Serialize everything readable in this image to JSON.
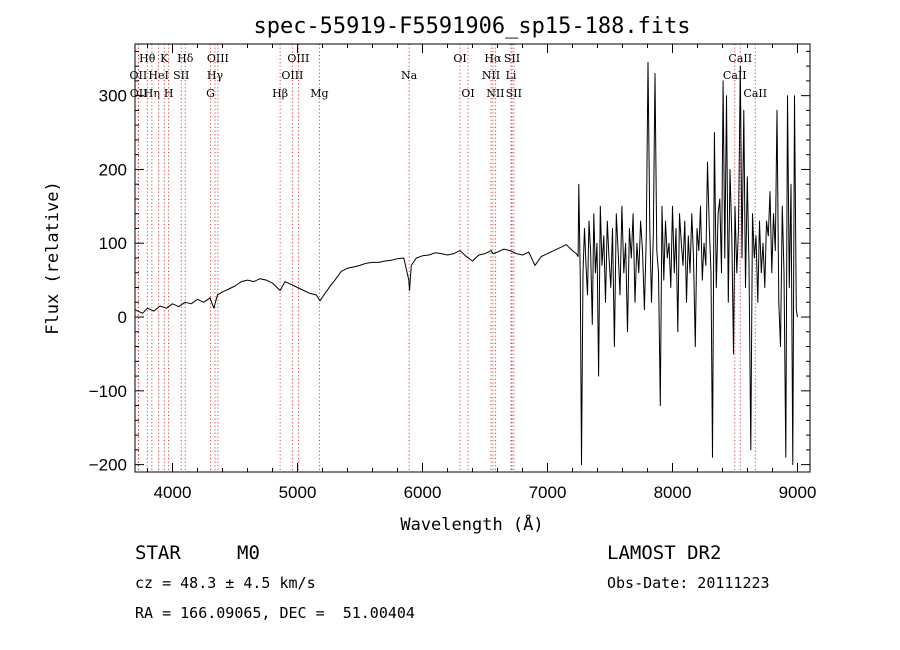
{
  "chart_data": {
    "type": "line",
    "title": "spec-55919-F5591906_sp15-188.fits",
    "xlabel": "Wavelength (Å)",
    "ylabel": "Flux (relative)",
    "xlim": [
      3700,
      9100
    ],
    "ylim": [
      -210,
      370
    ],
    "xticks": [
      "4000",
      "5000",
      "6000",
      "7000",
      "8000",
      "9000"
    ],
    "yticks": [
      "−200",
      "−100",
      "0",
      "100",
      "200",
      "300"
    ],
    "grid": false,
    "series": [
      {
        "points": [
          [
            3700,
            10
          ],
          [
            3760,
            5
          ],
          [
            3800,
            12
          ],
          [
            3850,
            8
          ],
          [
            3900,
            15
          ],
          [
            3950,
            12
          ],
          [
            4000,
            18
          ],
          [
            4050,
            14
          ],
          [
            4100,
            20
          ],
          [
            4150,
            18
          ],
          [
            4200,
            24
          ],
          [
            4250,
            20
          ],
          [
            4300,
            26
          ],
          [
            4330,
            12
          ],
          [
            4360,
            30
          ],
          [
            4400,
            34
          ],
          [
            4450,
            38
          ],
          [
            4500,
            42
          ],
          [
            4550,
            48
          ],
          [
            4600,
            50
          ],
          [
            4650,
            48
          ],
          [
            4700,
            52
          ],
          [
            4750,
            50
          ],
          [
            4800,
            46
          ],
          [
            4861,
            36
          ],
          [
            4900,
            48
          ],
          [
            4950,
            44
          ],
          [
            5000,
            40
          ],
          [
            5050,
            36
          ],
          [
            5100,
            32
          ],
          [
            5150,
            30
          ],
          [
            5180,
            22
          ],
          [
            5220,
            32
          ],
          [
            5270,
            44
          ],
          [
            5300,
            50
          ],
          [
            5350,
            62
          ],
          [
            5400,
            66
          ],
          [
            5450,
            68
          ],
          [
            5500,
            70
          ],
          [
            5550,
            73
          ],
          [
            5600,
            74
          ],
          [
            5650,
            74
          ],
          [
            5700,
            76
          ],
          [
            5750,
            77
          ],
          [
            5800,
            79
          ],
          [
            5850,
            80
          ],
          [
            5890,
            50
          ],
          [
            5896,
            36
          ],
          [
            5910,
            70
          ],
          [
            5950,
            80
          ],
          [
            6000,
            83
          ],
          [
            6050,
            84
          ],
          [
            6100,
            87
          ],
          [
            6150,
            86
          ],
          [
            6200,
            84
          ],
          [
            6250,
            86
          ],
          [
            6300,
            90
          ],
          [
            6350,
            82
          ],
          [
            6400,
            76
          ],
          [
            6450,
            84
          ],
          [
            6500,
            86
          ],
          [
            6550,
            90
          ],
          [
            6563,
            86
          ],
          [
            6600,
            88
          ],
          [
            6650,
            92
          ],
          [
            6700,
            90
          ],
          [
            6750,
            86
          ],
          [
            6800,
            84
          ],
          [
            6850,
            88
          ],
          [
            6900,
            70
          ],
          [
            6950,
            82
          ],
          [
            7000,
            86
          ],
          [
            7050,
            90
          ],
          [
            7100,
            94
          ],
          [
            7150,
            98
          ],
          [
            7200,
            90
          ],
          [
            7230,
            86
          ],
          [
            7245,
            82
          ],
          [
            7250,
            180
          ],
          [
            7262,
            50
          ],
          [
            7272,
            -200
          ],
          [
            7284,
            60
          ],
          [
            7296,
            120
          ],
          [
            7308,
            70
          ],
          [
            7320,
            30
          ],
          [
            7332,
            130
          ],
          [
            7345,
            90
          ],
          [
            7358,
            -10
          ],
          [
            7370,
            140
          ],
          [
            7383,
            60
          ],
          [
            7396,
            100
          ],
          [
            7409,
            -80
          ],
          [
            7422,
            150
          ],
          [
            7436,
            70
          ],
          [
            7450,
            110
          ],
          [
            7464,
            20
          ],
          [
            7478,
            130
          ],
          [
            7492,
            80
          ],
          [
            7506,
            40
          ],
          [
            7520,
            120
          ],
          [
            7535,
            -40
          ],
          [
            7550,
            140
          ],
          [
            7565,
            90
          ],
          [
            7580,
            30
          ],
          [
            7595,
            150
          ],
          [
            7610,
            60
          ],
          [
            7625,
            100
          ],
          [
            7640,
            -20
          ],
          [
            7655,
            120
          ],
          [
            7670,
            80
          ],
          [
            7685,
            140
          ],
          [
            7700,
            20
          ],
          [
            7715,
            100
          ],
          [
            7730,
            60
          ],
          [
            7745,
            130
          ],
          [
            7760,
            90
          ],
          [
            7775,
            10
          ],
          [
            7790,
            110
          ],
          [
            7804,
            345
          ],
          [
            7818,
            120
          ],
          [
            7832,
            20
          ],
          [
            7846,
            110
          ],
          [
            7860,
            330
          ],
          [
            7874,
            90
          ],
          [
            7888,
            60
          ],
          [
            7902,
            -120
          ],
          [
            7916,
            150
          ],
          [
            7930,
            50
          ],
          [
            7944,
            130
          ],
          [
            7958,
            80
          ],
          [
            7972,
            100
          ],
          [
            7986,
            40
          ],
          [
            8000,
            150
          ],
          [
            8014,
            60
          ],
          [
            8028,
            120
          ],
          [
            8042,
            -20
          ],
          [
            8056,
            140
          ],
          [
            8070,
            100
          ],
          [
            8084,
            70
          ],
          [
            8098,
            130
          ],
          [
            8112,
            20
          ],
          [
            8126,
            110
          ],
          [
            8140,
            60
          ],
          [
            8154,
            140
          ],
          [
            8168,
            80
          ],
          [
            8182,
            -40
          ],
          [
            8196,
            120
          ],
          [
            8210,
            90
          ],
          [
            8224,
            150
          ],
          [
            8238,
            50
          ],
          [
            8252,
            100
          ],
          [
            8266,
            70
          ],
          [
            8280,
            210
          ],
          [
            8294,
            120
          ],
          [
            8308,
            60
          ],
          [
            8320,
            -190
          ],
          [
            8335,
            250
          ],
          [
            8350,
            40
          ],
          [
            8365,
            140
          ],
          [
            8378,
            160
          ],
          [
            8392,
            60
          ],
          [
            8405,
            320
          ],
          [
            8418,
            80
          ],
          [
            8432,
            300
          ],
          [
            8446,
            20
          ],
          [
            8460,
            200
          ],
          [
            8474,
            110
          ],
          [
            8488,
            -50
          ],
          [
            8500,
            150
          ],
          [
            8514,
            60
          ],
          [
            8528,
            120
          ],
          [
            8542,
            340
          ],
          [
            8556,
            80
          ],
          [
            8570,
            280
          ],
          [
            8584,
            40
          ],
          [
            8598,
            190
          ],
          [
            8612,
            70
          ],
          [
            8626,
            -180
          ],
          [
            8640,
            140
          ],
          [
            8654,
            80
          ],
          [
            8668,
            110
          ],
          [
            8682,
            20
          ],
          [
            8696,
            130
          ],
          [
            8710,
            60
          ],
          [
            8724,
            100
          ],
          [
            8738,
            40
          ],
          [
            8752,
            130
          ],
          [
            8766,
            110
          ],
          [
            8780,
            170
          ],
          [
            8794,
            60
          ],
          [
            8808,
            140
          ],
          [
            8822,
            90
          ],
          [
            8836,
            280
          ],
          [
            8850,
            20
          ],
          [
            8864,
            -40
          ],
          [
            8878,
            150
          ],
          [
            8892,
            60
          ],
          [
            8906,
            -190
          ],
          [
            8920,
            300
          ],
          [
            8934,
            40
          ],
          [
            8948,
            180
          ],
          [
            8962,
            -200
          ],
          [
            8976,
            300
          ],
          [
            8990,
            10
          ],
          [
            9000,
            0
          ]
        ]
      }
    ],
    "lines": [
      {
        "label": "Hθ",
        "x": 3798,
        "row": 1
      },
      {
        "label": "OII",
        "x": 3727,
        "row": 2
      },
      {
        "label": "OII",
        "x": 3729,
        "row": 3
      },
      {
        "label": "Hη",
        "x": 3835,
        "row": 3
      },
      {
        "label": "K",
        "x": 3934,
        "row": 1
      },
      {
        "label": "HeI",
        "x": 3889,
        "row": 2
      },
      {
        "label": "H",
        "x": 3969,
        "row": 3
      },
      {
        "label": "SII",
        "x": 4070,
        "row": 2
      },
      {
        "label": "Hδ",
        "x": 4102,
        "row": 1
      },
      {
        "label": "OIII",
        "x": 4363,
        "row": 1
      },
      {
        "label": "Hγ",
        "x": 4340,
        "row": 2
      },
      {
        "label": "G",
        "x": 4304,
        "row": 3
      },
      {
        "label": "Hβ",
        "x": 4861,
        "row": 3
      },
      {
        "label": "OIII",
        "x": 5007,
        "row": 1
      },
      {
        "label": "OIII",
        "x": 4959,
        "row": 2
      },
      {
        "label": "Mg",
        "x": 5175,
        "row": 3
      },
      {
        "label": "Na",
        "x": 5893,
        "row": 2
      },
      {
        "label": "OI",
        "x": 6300,
        "row": 1
      },
      {
        "label": "OI",
        "x": 6364,
        "row": 3
      },
      {
        "label": "Hα",
        "x": 6563,
        "row": 1
      },
      {
        "label": "NII",
        "x": 6548,
        "row": 2
      },
      {
        "label": "NII",
        "x": 6583,
        "row": 3
      },
      {
        "label": "SII",
        "x": 6716,
        "row": 1
      },
      {
        "label": "Li",
        "x": 6708,
        "row": 2
      },
      {
        "label": "SII",
        "x": 6731,
        "row": 3
      },
      {
        "label": "CaII",
        "x": 8542,
        "row": 1
      },
      {
        "label": "CaII",
        "x": 8498,
        "row": 2
      },
      {
        "label": "CaII",
        "x": 8662,
        "row": 3
      }
    ]
  },
  "footer": {
    "object_class": "STAR",
    "subclass": "M0",
    "survey": "LAMOST DR2",
    "cz": "cz = 48.3 ± 4.5 km/s",
    "obs_date": "Obs-Date: 20111223",
    "coords": "RA = 166.09065, DEC =  51.00404"
  }
}
